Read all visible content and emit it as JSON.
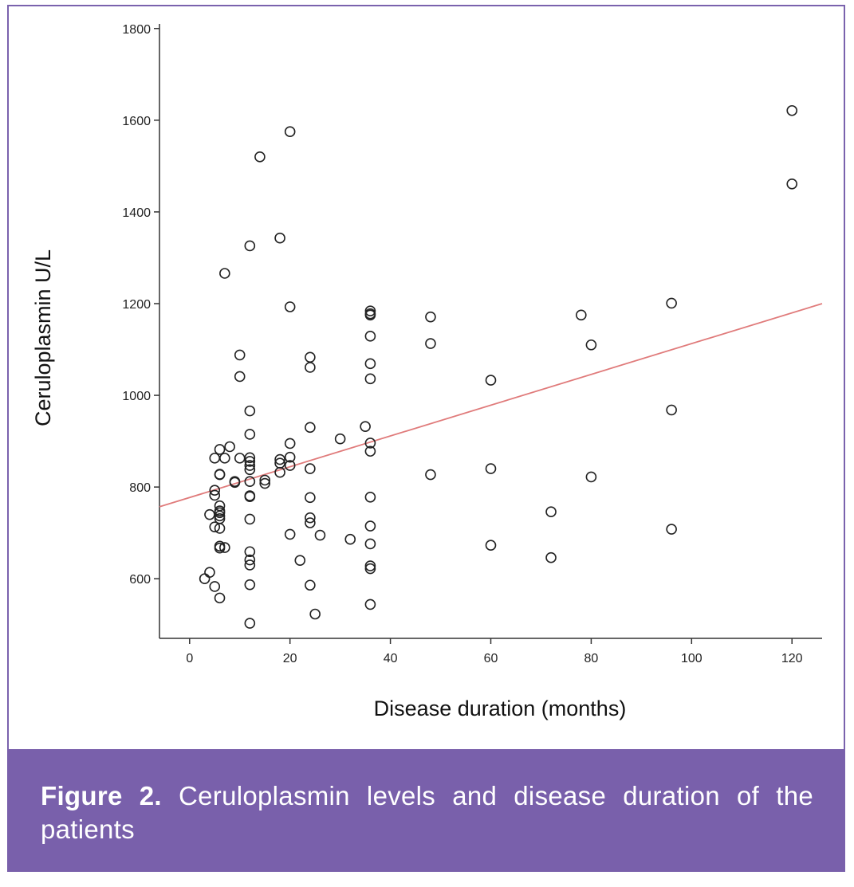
{
  "caption": {
    "label": "Figure 2.",
    "text": "Ceruloplasmin levels and disease duration of the patients"
  },
  "chart_data": {
    "type": "scatter",
    "title": "",
    "xlabel": "Disease duration (months)",
    "ylabel": "Ceruloplasmin U/L",
    "xlim": [
      -6,
      126
    ],
    "ylim": [
      470,
      1810
    ],
    "xticks": [
      0,
      20,
      40,
      60,
      80,
      100,
      120
    ],
    "yticks": [
      600,
      800,
      1000,
      1200,
      1400,
      1600,
      1800
    ],
    "grid": false,
    "marker_color": "#222222",
    "fit_line": {
      "color": "#e07b7b",
      "from": [
        -6,
        757
      ],
      "to": [
        126,
        1200
      ]
    },
    "points": [
      [
        3,
        600
      ],
      [
        4,
        614
      ],
      [
        4,
        740
      ],
      [
        5,
        583
      ],
      [
        5,
        782
      ],
      [
        5,
        793
      ],
      [
        5,
        863
      ],
      [
        5,
        713
      ],
      [
        6,
        558
      ],
      [
        6,
        667
      ],
      [
        6,
        671
      ],
      [
        6,
        710
      ],
      [
        6,
        731
      ],
      [
        6,
        737
      ],
      [
        6,
        744
      ],
      [
        6,
        748
      ],
      [
        6,
        759
      ],
      [
        6,
        827
      ],
      [
        6,
        828
      ],
      [
        6,
        882
      ],
      [
        7,
        668
      ],
      [
        7,
        863
      ],
      [
        7,
        1266
      ],
      [
        8,
        888
      ],
      [
        9,
        810
      ],
      [
        9,
        812
      ],
      [
        10,
        863
      ],
      [
        10,
        1041
      ],
      [
        10,
        1088
      ],
      [
        12,
        503
      ],
      [
        12,
        587
      ],
      [
        12,
        630
      ],
      [
        12,
        641
      ],
      [
        12,
        659
      ],
      [
        12,
        730
      ],
      [
        12,
        779
      ],
      [
        12,
        781
      ],
      [
        12,
        812
      ],
      [
        12,
        838
      ],
      [
        12,
        847
      ],
      [
        12,
        856
      ],
      [
        12,
        864
      ],
      [
        12,
        915
      ],
      [
        12,
        966
      ],
      [
        12,
        1326
      ],
      [
        14,
        1520
      ],
      [
        15,
        808
      ],
      [
        15,
        815
      ],
      [
        18,
        832
      ],
      [
        18,
        852
      ],
      [
        18,
        860
      ],
      [
        18,
        1343
      ],
      [
        20,
        697
      ],
      [
        20,
        847
      ],
      [
        20,
        865
      ],
      [
        20,
        895
      ],
      [
        20,
        1193
      ],
      [
        20,
        1575
      ],
      [
        22,
        640
      ],
      [
        24,
        586
      ],
      [
        24,
        722
      ],
      [
        24,
        733
      ],
      [
        24,
        777
      ],
      [
        24,
        840
      ],
      [
        24,
        930
      ],
      [
        24,
        1061
      ],
      [
        24,
        1083
      ],
      [
        25,
        523
      ],
      [
        26,
        695
      ],
      [
        30,
        905
      ],
      [
        32,
        686
      ],
      [
        35,
        932
      ],
      [
        36,
        544
      ],
      [
        36,
        622
      ],
      [
        36,
        628
      ],
      [
        36,
        676
      ],
      [
        36,
        715
      ],
      [
        36,
        778
      ],
      [
        36,
        878
      ],
      [
        36,
        896
      ],
      [
        36,
        1036
      ],
      [
        36,
        1069
      ],
      [
        36,
        1129
      ],
      [
        36,
        1175
      ],
      [
        36,
        1178
      ],
      [
        36,
        1184
      ],
      [
        48,
        827
      ],
      [
        48,
        1113
      ],
      [
        48,
        1171
      ],
      [
        60,
        673
      ],
      [
        60,
        840
      ],
      [
        60,
        1033
      ],
      [
        72,
        646
      ],
      [
        72,
        746
      ],
      [
        78,
        1175
      ],
      [
        80,
        822
      ],
      [
        80,
        1110
      ],
      [
        96,
        708
      ],
      [
        96,
        968
      ],
      [
        96,
        1201
      ],
      [
        120,
        1461
      ],
      [
        120,
        1621
      ]
    ]
  }
}
